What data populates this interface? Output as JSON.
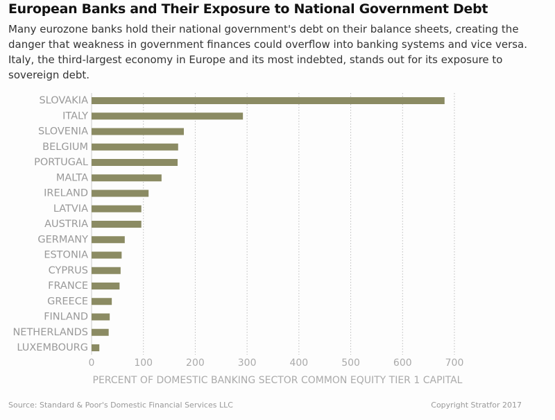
{
  "chart_data": {
    "type": "hbar",
    "title": "European Banks and Their Exposure to National Government Debt",
    "subtitle": "Many eurozone banks hold their national government's debt on their balance sheets, creating the danger that weakness in government finances could overflow into banking systems and vice versa. Italy, the third-largest economy in Europe and its most indebted, stands out for its exposure to sovereign debt.",
    "categories": [
      "SLOVAKIA",
      "ITALY",
      "SLOVENIA",
      "BELGIUM",
      "PORTUGAL",
      "MALTA",
      "IRELAND",
      "LATVIA",
      "AUSTRIA",
      "GERMANY",
      "ESTONIA",
      "CYPRUS",
      "FRANCE",
      "GREECE",
      "FINLAND",
      "NETHERLANDS",
      "LUXEMBOURG"
    ],
    "values": [
      681,
      292,
      178,
      167,
      166,
      135,
      110,
      96,
      96,
      64,
      58,
      56,
      54,
      39,
      35,
      33,
      15
    ],
    "color": "#8b8b63",
    "xlabel": "PERCENT OF DOMESTIC BANKING SECTOR COMMON EQUITY TIER 1 CAPITAL",
    "xlim": [
      0,
      700
    ],
    "xticks": [
      0,
      100,
      200,
      300,
      400,
      500,
      600,
      700
    ],
    "grid": true,
    "source": "Source: Standard & Poor's Domestic Financial Services LLC",
    "copyright": "Copyright Stratfor 2017"
  }
}
